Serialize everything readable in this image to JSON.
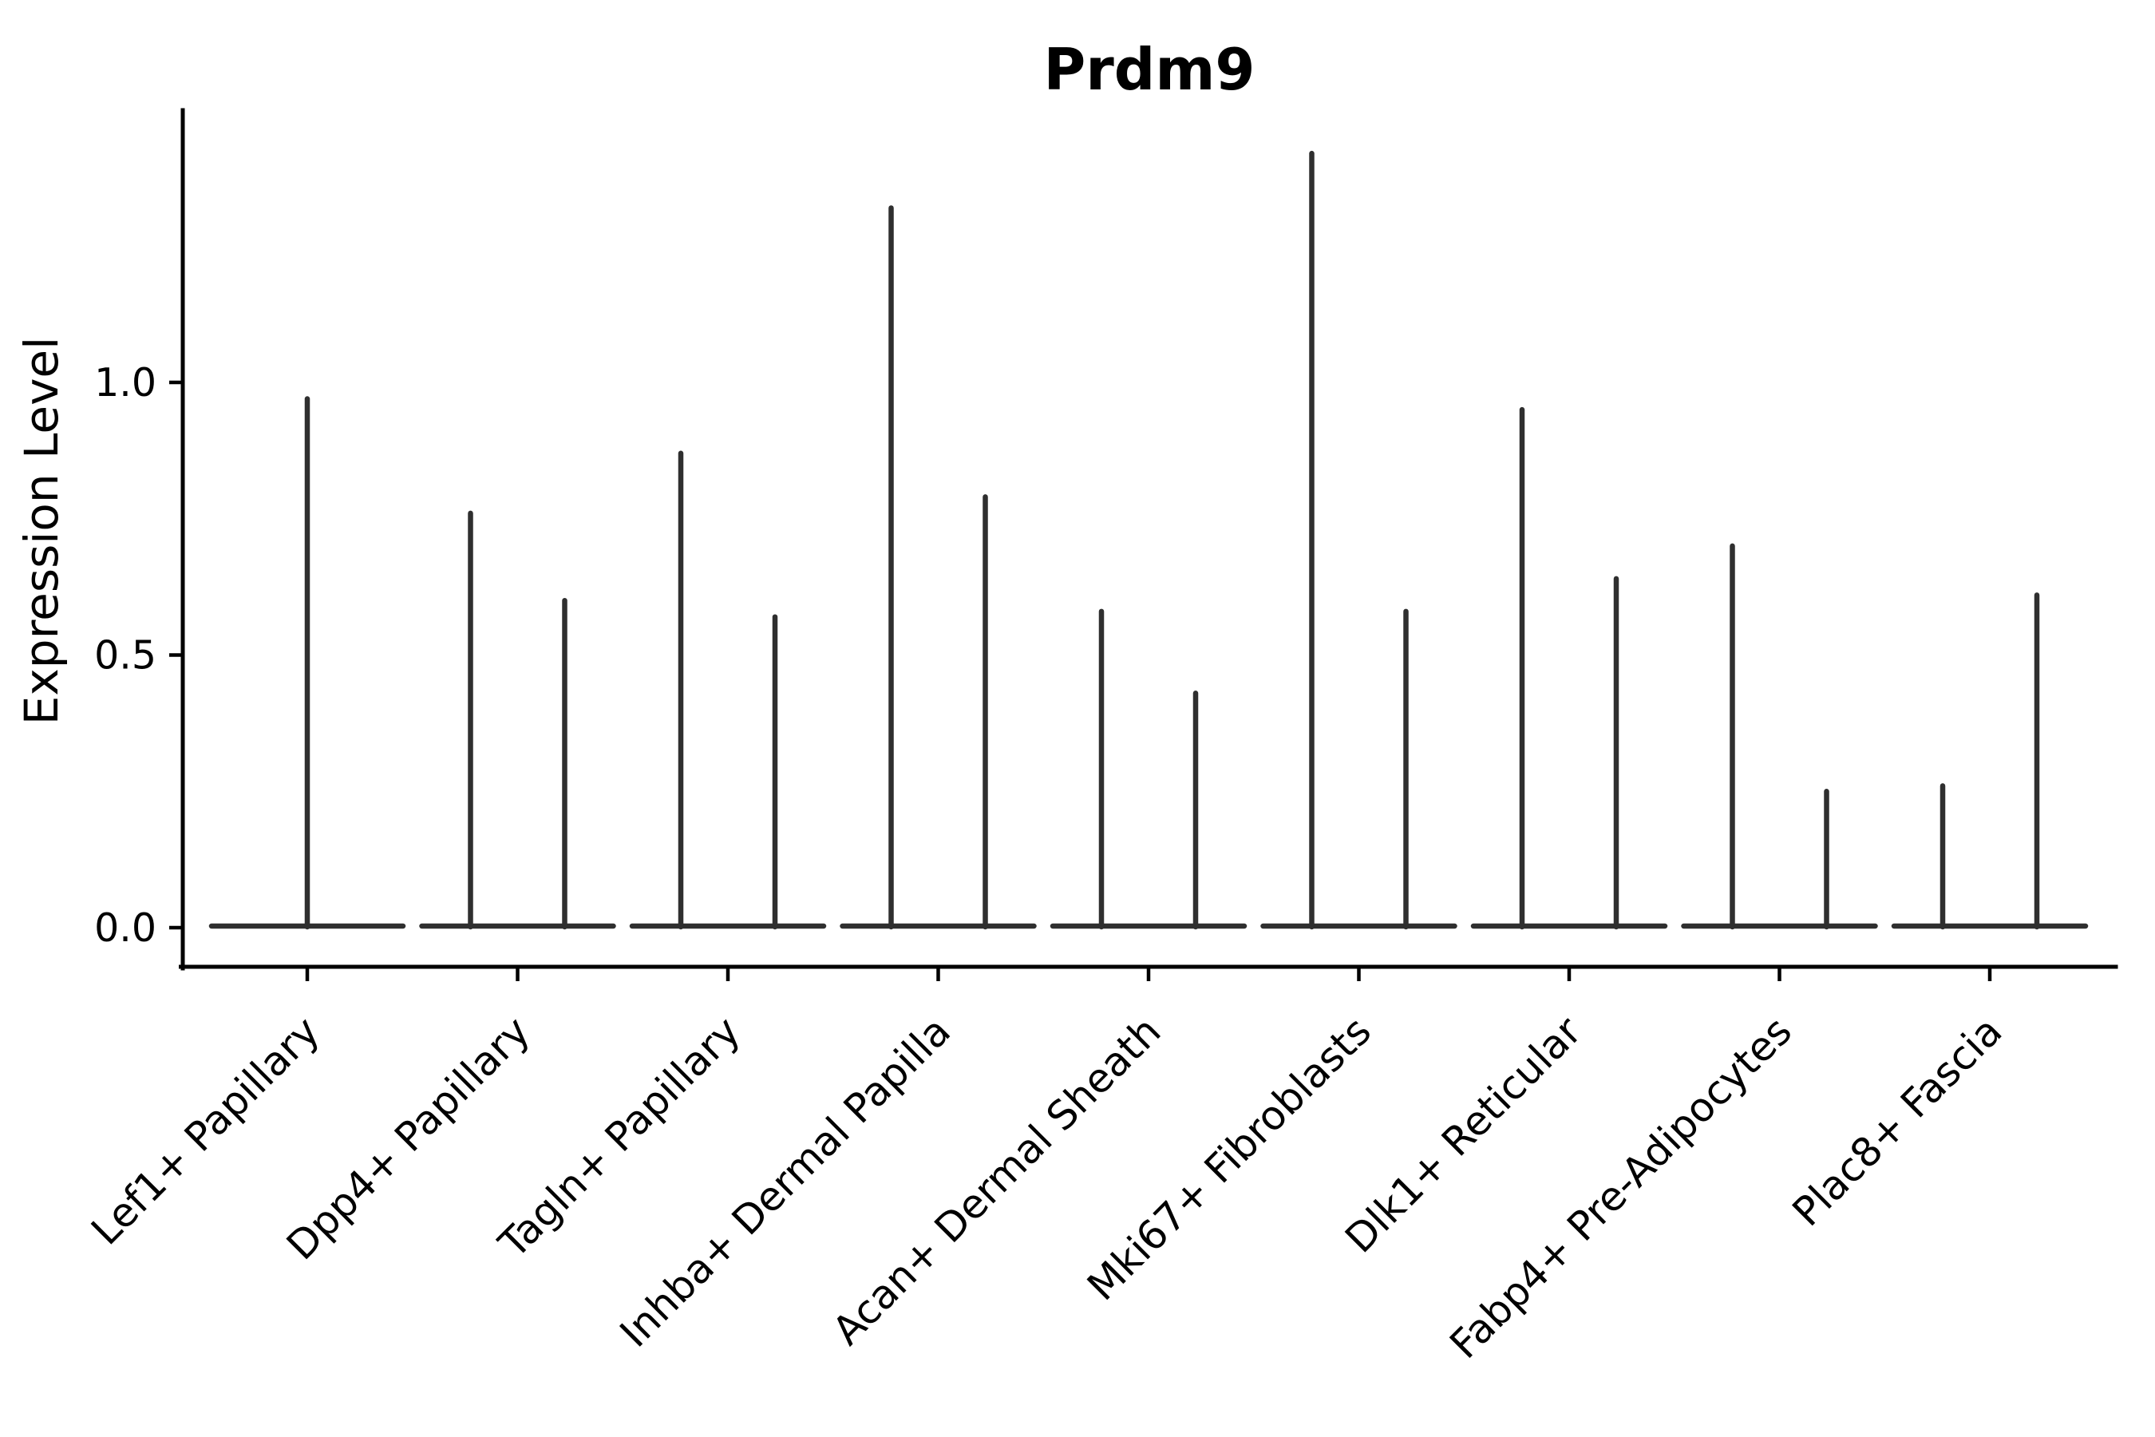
{
  "title": "Prdm9",
  "chart_data": {
    "type": "violin",
    "title": "Prdm9",
    "xlabel": "",
    "ylabel": "Expression Level",
    "categories": [
      "Lef1+ Papillary",
      "Dpp4+ Papillary",
      "Tagln+ Papillary",
      "Inhba+ Dermal Papilla",
      "Acan+ Dermal Sheath",
      "Mki67+ Fibroblasts",
      "Dlk1+ Reticular",
      "Fabp4+ Pre-Adipocytes",
      "Plac8+ Fascia"
    ],
    "ytick_labels": [
      "0.0",
      "0.5",
      "1.0"
    ],
    "ytick_values": [
      0.0,
      0.5,
      1.0
    ],
    "ylim": [
      -0.07,
      1.5
    ],
    "grid": false,
    "legend": null,
    "series": [
      {
        "category": "Lef1+ Papillary",
        "violin_max_values": [
          0.97
        ]
      },
      {
        "category": "Dpp4+ Papillary",
        "violin_max_values": [
          0.76,
          0.6
        ]
      },
      {
        "category": "Tagln+ Papillary",
        "violin_max_values": [
          0.87,
          0.57
        ]
      },
      {
        "category": "Inhba+ Dermal Papilla",
        "violin_max_values": [
          1.32,
          0.79
        ]
      },
      {
        "category": "Acan+ Dermal Sheath",
        "violin_max_values": [
          0.58,
          0.43
        ]
      },
      {
        "category": "Mki67+ Fibroblasts",
        "violin_max_values": [
          1.42,
          0.58
        ]
      },
      {
        "category": "Dlk1+ Reticular",
        "violin_max_values": [
          0.95,
          0.64
        ]
      },
      {
        "category": "Fabp4+ Pre-Adipocytes",
        "violin_max_values": [
          0.7,
          0.25
        ]
      },
      {
        "category": "Plac8+ Fascia",
        "violin_max_values": [
          0.26,
          0.61
        ]
      }
    ],
    "violin_color": "#2f2f2f",
    "axis_color": "#000000",
    "background_color": "#ffffff"
  }
}
